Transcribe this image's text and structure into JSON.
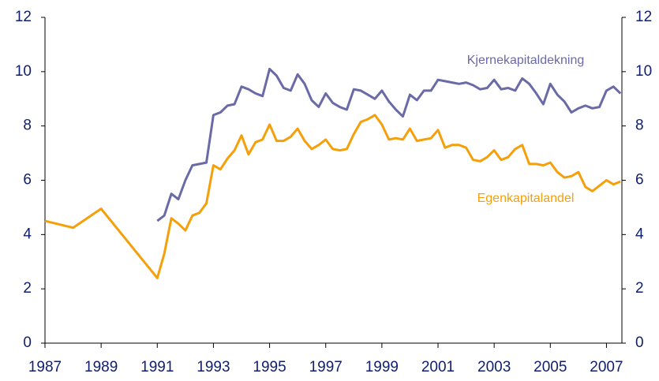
{
  "chart_data": {
    "type": "line",
    "xlim": [
      1987,
      2007.55
    ],
    "xticks": [
      1987,
      1989,
      1991,
      1993,
      1995,
      1997,
      1999,
      2001,
      2003,
      2005,
      2007
    ],
    "ylim": [
      0,
      12
    ],
    "yticks": [
      0,
      2,
      4,
      6,
      8,
      10,
      12
    ],
    "y2lim": [
      0,
      12
    ],
    "y2ticks": [
      0,
      2,
      4,
      6,
      8,
      10,
      12
    ],
    "series": [
      {
        "name": "Kjernekapitaldekning",
        "color": "#6a6aa6",
        "x": [
          1991,
          1991.25,
          1991.5,
          1991.75,
          1992,
          1992.25,
          1992.5,
          1992.75,
          1993,
          1993.25,
          1993.5,
          1993.75,
          1994,
          1994.25,
          1994.5,
          1994.75,
          1995,
          1995.25,
          1995.5,
          1995.75,
          1996,
          1996.25,
          1996.5,
          1996.75,
          1997,
          1997.25,
          1997.5,
          1997.75,
          1998,
          1998.25,
          1998.5,
          1998.75,
          1999,
          1999.25,
          1999.5,
          1999.75,
          2000,
          2000.25,
          2000.5,
          2000.75,
          2001,
          2001.25,
          2001.5,
          2001.75,
          2002,
          2002.25,
          2002.5,
          2002.75,
          2003,
          2003.25,
          2003.5,
          2003.75,
          2004,
          2004.25,
          2004.5,
          2004.75,
          2005,
          2005.25,
          2005.5,
          2005.75,
          2006,
          2006.25,
          2006.5,
          2006.75,
          2007,
          2007.25,
          2007.5
        ],
        "values": [
          4.5,
          4.7,
          5.5,
          5.3,
          6.0,
          6.55,
          6.6,
          6.65,
          8.4,
          8.5,
          8.75,
          8.8,
          9.45,
          9.35,
          9.2,
          9.1,
          10.1,
          9.85,
          9.4,
          9.3,
          9.9,
          9.55,
          8.95,
          8.7,
          9.2,
          8.85,
          8.7,
          8.6,
          9.35,
          9.3,
          9.15,
          9.0,
          9.3,
          8.9,
          8.6,
          8.35,
          9.15,
          8.95,
          9.3,
          9.3,
          9.7,
          9.65,
          9.6,
          9.55,
          9.6,
          9.5,
          9.35,
          9.4,
          9.7,
          9.35,
          9.4,
          9.3,
          9.75,
          9.55,
          9.2,
          8.8,
          9.55,
          9.15,
          8.9,
          8.5,
          8.65,
          8.75,
          8.65,
          8.7,
          9.3,
          9.45,
          9.2
        ]
      },
      {
        "name": "Egenkapitalandel",
        "color": "#f5a00a",
        "x": [
          1987,
          1988,
          1989,
          1991,
          1991.25,
          1991.5,
          1991.75,
          1992,
          1992.25,
          1992.5,
          1992.75,
          1993,
          1993.25,
          1993.5,
          1993.75,
          1994,
          1994.25,
          1994.5,
          1994.75,
          1995,
          1995.25,
          1995.5,
          1995.75,
          1996,
          1996.25,
          1996.5,
          1996.75,
          1997,
          1997.25,
          1997.5,
          1997.75,
          1998,
          1998.25,
          1998.5,
          1998.75,
          1999,
          1999.25,
          1999.5,
          1999.75,
          2000,
          2000.25,
          2000.5,
          2000.75,
          2001,
          2001.25,
          2001.5,
          2001.75,
          2002,
          2002.25,
          2002.5,
          2002.75,
          2003,
          2003.25,
          2003.5,
          2003.75,
          2004,
          2004.25,
          2004.5,
          2004.75,
          2005,
          2005.25,
          2005.5,
          2005.75,
          2006,
          2006.25,
          2006.5,
          2006.75,
          2007,
          2007.25,
          2007.5
        ],
        "values": [
          4.5,
          4.25,
          4.95,
          2.4,
          3.3,
          4.6,
          4.4,
          4.15,
          4.7,
          4.8,
          5.15,
          6.55,
          6.4,
          6.8,
          7.1,
          7.65,
          6.95,
          7.4,
          7.5,
          8.05,
          7.45,
          7.45,
          7.6,
          7.9,
          7.45,
          7.15,
          7.3,
          7.5,
          7.15,
          7.1,
          7.15,
          7.7,
          8.15,
          8.25,
          8.4,
          8.05,
          7.5,
          7.55,
          7.5,
          7.9,
          7.45,
          7.5,
          7.55,
          7.85,
          7.2,
          7.3,
          7.3,
          7.2,
          6.75,
          6.7,
          6.85,
          7.1,
          6.75,
          6.85,
          7.15,
          7.3,
          6.6,
          6.6,
          6.55,
          6.65,
          6.3,
          6.1,
          6.15,
          6.3,
          5.75,
          5.6,
          5.8,
          6.0,
          5.85,
          5.95
        ]
      }
    ]
  }
}
